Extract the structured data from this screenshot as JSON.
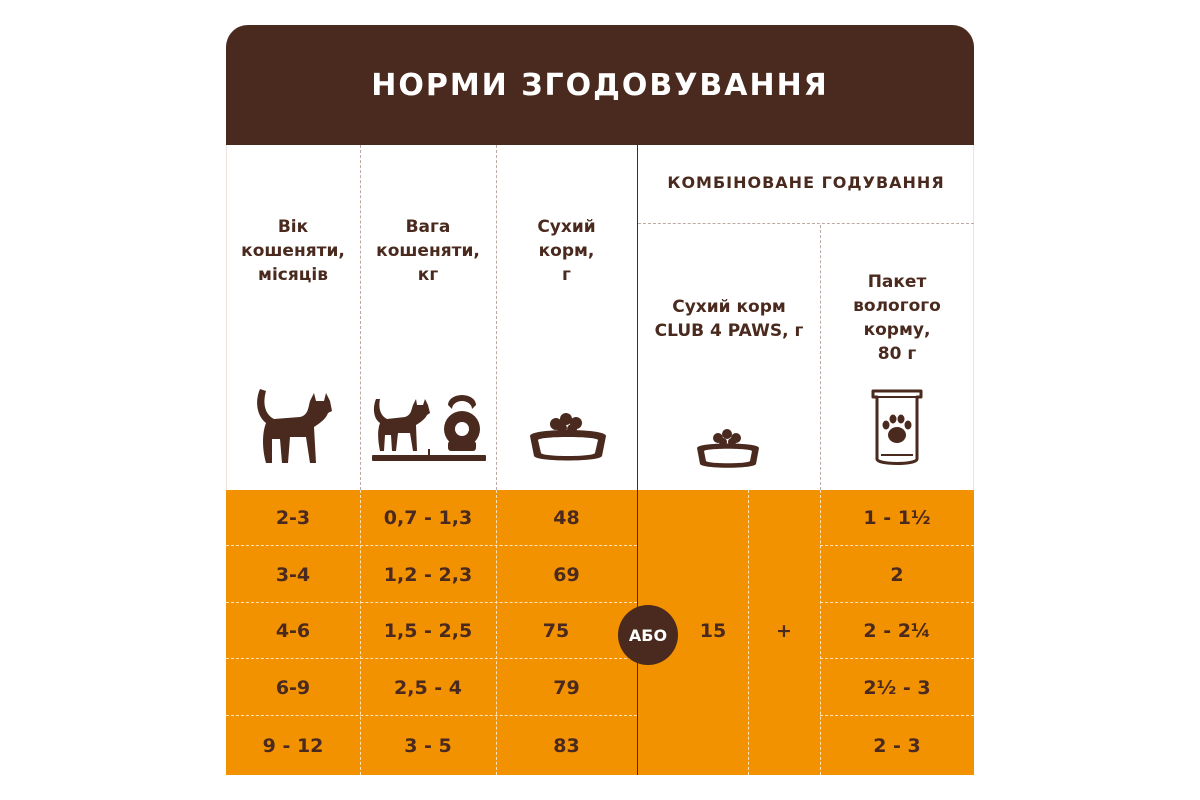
{
  "title": "НОРМИ ЗГОДОВУВАННЯ",
  "headers": {
    "age": [
      "Вік",
      "кошеняти,",
      "місяців"
    ],
    "weight": [
      "Вага",
      "кошеняти,",
      "кг"
    ],
    "dry": [
      "Сухий",
      "корм,",
      "г"
    ],
    "combined": "КОМБІНОВАНЕ ГОДУВАННЯ",
    "combined_dry": [
      "Сухий корм",
      "CLUB 4 PAWS, г"
    ],
    "wet": [
      "Пакет",
      "вологого",
      "корму,",
      "80 г"
    ]
  },
  "icons": {
    "age": "cat-icon",
    "weight": "cat-on-scale-with-kettlebell-icon",
    "dry": "food-bowl-icon",
    "combined_dry": "small-food-bowl-icon",
    "wet": "wet-food-pouch-paw-icon"
  },
  "rows": [
    {
      "age": "2-3",
      "weight": "0,7 - 1,3",
      "dry": "48",
      "wet": "1 - 1½"
    },
    {
      "age": "3-4",
      "weight": "1,2 - 2,3",
      "dry": "69",
      "wet": "2"
    },
    {
      "age": "4-6",
      "weight": "1,5 - 2,5",
      "dry": "75",
      "wet": "2 - 2¼"
    },
    {
      "age": "6-9",
      "weight": "2,5 - 4",
      "dry": "79",
      "wet": "2½ - 3"
    },
    {
      "age": "9 - 12",
      "weight": "3 - 5",
      "dry": "83",
      "wet": "2 - 3"
    }
  ],
  "or_label": "АБО",
  "combined_dry_value": "15",
  "plus_label": "+",
  "colors": {
    "brown": "#4a2a1e",
    "orange": "#f39200",
    "white": "#ffffff"
  }
}
